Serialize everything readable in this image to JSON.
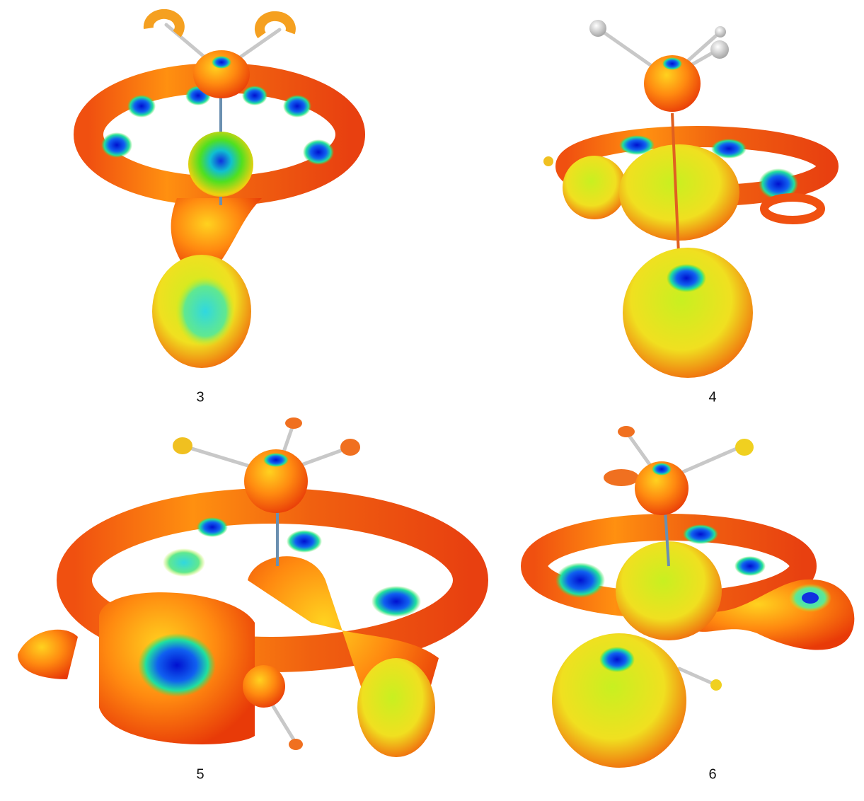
{
  "panels": [
    {
      "label": "3"
    },
    {
      "label": "4"
    },
    {
      "label": "5"
    },
    {
      "label": "6"
    }
  ]
}
